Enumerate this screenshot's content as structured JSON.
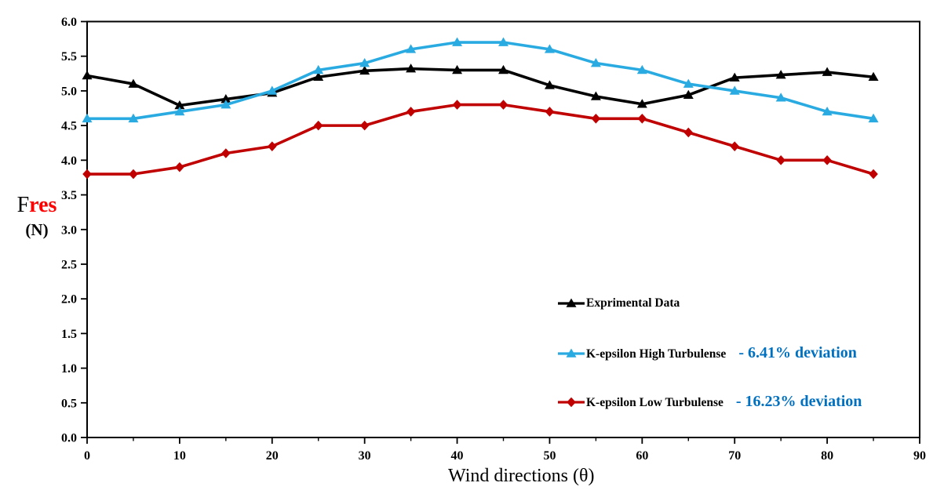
{
  "y_axis_label": {
    "prefix": "F",
    "highlight": "res",
    "unit": "(N)",
    "highlight_color": "#FF0000"
  },
  "colors": {
    "axis": "#000000",
    "background": "#FFFFFF",
    "deviation_text": "#0070C0"
  },
  "chart_data": {
    "type": "line",
    "title": "",
    "grid": false,
    "legend_position": "inside-right-lower",
    "x": [
      0,
      5,
      10,
      15,
      20,
      25,
      30,
      35,
      40,
      45,
      50,
      55,
      60,
      65,
      70,
      75,
      80,
      85
    ],
    "x_axis": {
      "label": "Wind directions (θ)",
      "min": 0,
      "max": 90,
      "major_ticks": [
        0,
        10,
        20,
        30,
        40,
        50,
        60,
        70,
        80,
        90
      ],
      "minor_ticks": [
        5,
        15,
        25,
        35,
        45,
        55,
        65,
        75,
        85
      ],
      "tick_labels": [
        "0",
        "10",
        "20",
        "30",
        "40",
        "50",
        "60",
        "70",
        "80",
        "90"
      ]
    },
    "y_axis": {
      "label": "Fres (N)",
      "min": 0,
      "max": 6,
      "major_ticks": [
        0,
        0.5,
        1,
        1.5,
        2,
        2.5,
        3,
        3.5,
        4,
        4.5,
        5,
        5.5,
        6
      ],
      "tick_labels": [
        "0.0",
        "0.5",
        "1.0",
        "1.5",
        "2.0",
        "2.5",
        "3.0",
        "3.5",
        "4.0",
        "4.5",
        "5.0",
        "5.5",
        "6.0"
      ]
    },
    "series": [
      {
        "name": "Exprimental Data",
        "color": "#000000",
        "marker": "triangle",
        "deviation_label": "",
        "values": [
          5.22,
          5.1,
          4.79,
          4.88,
          4.97,
          5.2,
          5.29,
          5.32,
          5.3,
          5.3,
          5.08,
          4.92,
          4.81,
          4.94,
          5.19,
          5.23,
          5.27,
          5.2
        ]
      },
      {
        "name": "K-epsilon High Turbulense",
        "color": "#29ABE2",
        "marker": "triangle",
        "deviation_label": "- 6.41% deviation",
        "values": [
          4.6,
          4.6,
          4.7,
          4.8,
          5.0,
          5.3,
          5.4,
          5.6,
          5.7,
          5.7,
          5.6,
          5.4,
          5.3,
          5.1,
          5.0,
          4.9,
          4.7,
          4.6
        ]
      },
      {
        "name": "K-epsilon Low Turbulense",
        "color": "#C00000",
        "marker": "diamond",
        "deviation_label": "- 16.23% deviation",
        "values": [
          3.8,
          3.8,
          3.9,
          4.1,
          4.2,
          4.5,
          4.5,
          4.7,
          4.8,
          4.8,
          4.7,
          4.6,
          4.6,
          4.4,
          4.2,
          4.0,
          4.0,
          3.8
        ]
      }
    ]
  }
}
